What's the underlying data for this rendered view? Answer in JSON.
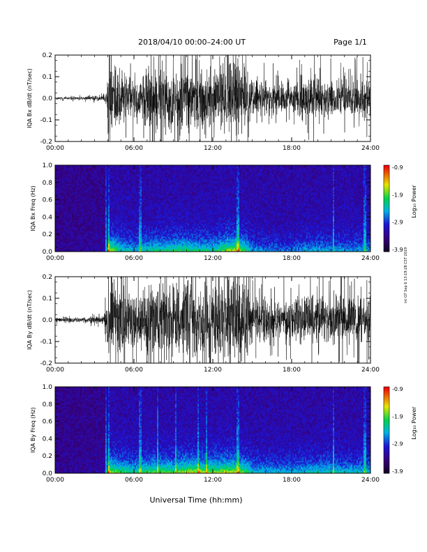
{
  "header": {
    "date_range": "2018/04/10   00:00–24:00 UT",
    "page": "Page 1/1"
  },
  "footer": {
    "x_axis_title": "Universal Time (hh:mm)"
  },
  "side_note": "int GT Sep 6 13:19:28 CST 2019",
  "colors": {
    "trace": "#000000",
    "background": "#ffffff"
  },
  "chart_data": [
    {
      "type": "line",
      "panel": "bx-timeseries",
      "ylabel": "IQA Bx dB/dt (nT/sec)",
      "xlabel": "",
      "x_range_hours": [
        0,
        24
      ],
      "x_ticks": [
        "00:00",
        "06:00",
        "12:00",
        "18:00",
        "24:00"
      ],
      "ylim": [
        -0.2,
        0.2
      ],
      "y_ticks": [
        "-0.2",
        "-0.1",
        "0.0",
        "0.1",
        "0.2"
      ],
      "envelope": {
        "hours": [
          0,
          2,
          3.6,
          3.9,
          4.1,
          5,
          6,
          7,
          8,
          9,
          10,
          11,
          12,
          13,
          13.8,
          14.5,
          15,
          16,
          17,
          18,
          19,
          20,
          21,
          22,
          23,
          24
        ],
        "amplitude": [
          0.006,
          0.007,
          0.012,
          0.05,
          0.2,
          0.13,
          0.1,
          0.13,
          0.14,
          0.15,
          0.15,
          0.14,
          0.13,
          0.18,
          0.2,
          0.15,
          0.09,
          0.08,
          0.07,
          0.07,
          0.09,
          0.1,
          0.09,
          0.09,
          0.09,
          0.09
        ]
      }
    },
    {
      "type": "heatmap",
      "panel": "bx-spectrogram",
      "ylabel": "IQA Bx Freq (Hz)",
      "x_range_hours": [
        0,
        24
      ],
      "x_ticks": [
        "00:00",
        "06:00",
        "12:00",
        "18:00",
        "24:00"
      ],
      "ylim": [
        0,
        1.0
      ],
      "y_ticks": [
        "0.0",
        "0.2",
        "0.4",
        "0.6",
        "0.8",
        "1.0"
      ],
      "colorbar_label": "Log₁₀ Power",
      "colorbar_ticks": [
        "-0.9",
        "-1.9",
        "-2.9",
        "-3.9"
      ],
      "colorbar_range": [
        -3.9,
        -0.9
      ],
      "vertical_streaks_hours": [
        3.9,
        4.1,
        6.5,
        13.9,
        21.2,
        23.6
      ]
    },
    {
      "type": "line",
      "panel": "by-timeseries",
      "ylabel": "IQA By dB/dt (nT/sec)",
      "xlabel": "",
      "x_range_hours": [
        0,
        24
      ],
      "x_ticks": [
        "00:00",
        "06:00",
        "12:00",
        "18:00",
        "24:00"
      ],
      "ylim": [
        -0.2,
        0.2
      ],
      "y_ticks": [
        "-0.2",
        "-0.1",
        "0.0",
        "0.1",
        "0.2"
      ],
      "envelope": {
        "hours": [
          0,
          2,
          3.6,
          3.9,
          4.1,
          5,
          6,
          7,
          8,
          9,
          10,
          11,
          12,
          13,
          13.8,
          14.5,
          15,
          16,
          17,
          18,
          19,
          20,
          21,
          22,
          23,
          24
        ],
        "amplitude": [
          0.01,
          0.012,
          0.02,
          0.06,
          0.2,
          0.16,
          0.13,
          0.16,
          0.17,
          0.16,
          0.2,
          0.2,
          0.18,
          0.2,
          0.2,
          0.17,
          0.12,
          0.1,
          0.1,
          0.1,
          0.11,
          0.12,
          0.12,
          0.11,
          0.11,
          0.11
        ]
      }
    },
    {
      "type": "heatmap",
      "panel": "by-spectrogram",
      "ylabel": "IQA By Freq (Hz)",
      "x_range_hours": [
        0,
        24
      ],
      "x_ticks": [
        "00:00",
        "06:00",
        "12:00",
        "18:00",
        "24:00"
      ],
      "ylim": [
        0,
        1.0
      ],
      "y_ticks": [
        "0.0",
        "0.2",
        "0.4",
        "0.6",
        "0.8",
        "1.0"
      ],
      "colorbar_label": "Log₁₀ Power",
      "colorbar_ticks": [
        "-0.9",
        "-1.9",
        "-2.9",
        "-3.9"
      ],
      "colorbar_range": [
        -3.9,
        -0.9
      ],
      "vertical_streaks_hours": [
        3.9,
        4.1,
        6.5,
        7.8,
        9.2,
        10.9,
        11.5,
        13.9,
        21.2,
        23.6
      ]
    }
  ]
}
